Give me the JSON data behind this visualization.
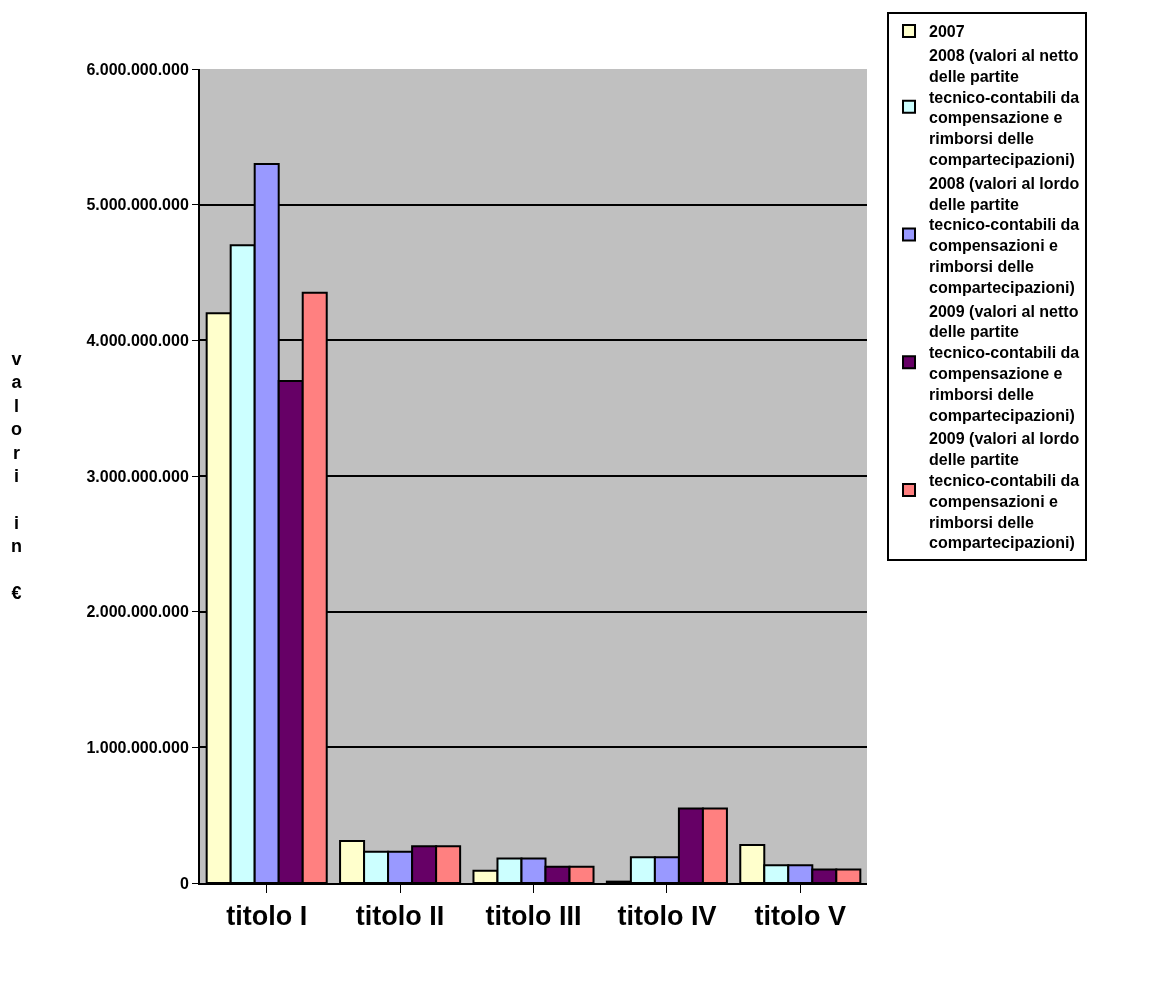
{
  "chart_data": {
    "type": "bar",
    "ylabel": "valori in €",
    "categories": [
      "titolo I",
      "titolo II",
      "titolo III",
      "titolo IV",
      "titolo V"
    ],
    "series": [
      {
        "name": "2007",
        "color": "#ffffcc",
        "values": [
          4200000000,
          310000000,
          90000000,
          10000000,
          280000000
        ]
      },
      {
        "name": "2008 (valori al netto delle partite tecnico-contabili da compensazione e rimborsi delle compartecipazioni)",
        "color": "#ccffff",
        "values": [
          4700000000,
          230000000,
          180000000,
          190000000,
          130000000
        ]
      },
      {
        "name": "2008 (valori al lordo delle partite tecnico-contabili da compensazioni e rimborsi delle compartecipazioni)",
        "color": "#9999ff",
        "values": [
          5300000000,
          230000000,
          180000000,
          190000000,
          130000000
        ]
      },
      {
        "name": "2009 (valori al netto delle partite tecnico-contabili da compensazione e rimborsi delle compartecipazioni)",
        "color": "#660066",
        "values": [
          3700000000,
          270000000,
          120000000,
          550000000,
          100000000
        ]
      },
      {
        "name": "2009 (valori al lordo delle partite tecnico-contabili da compensazioni e rimborsi delle compartecipazioni)",
        "color": "#ff8080",
        "values": [
          4350000000,
          270000000,
          120000000,
          550000000,
          100000000
        ]
      }
    ],
    "ylim": [
      0,
      6000000000
    ],
    "yticks": [
      {
        "value": 0,
        "label": "0"
      },
      {
        "value": 1000000000,
        "label": "1.000.000.000"
      },
      {
        "value": 2000000000,
        "label": "2.000.000.000"
      },
      {
        "value": 3000000000,
        "label": "3.000.000.000"
      },
      {
        "value": 4000000000,
        "label": "4.000.000.000"
      },
      {
        "value": 5000000000,
        "label": "5.000.000.000"
      },
      {
        "value": 6000000000,
        "label": "6.000.000.000"
      }
    ],
    "grid": "y",
    "legend": "right"
  }
}
